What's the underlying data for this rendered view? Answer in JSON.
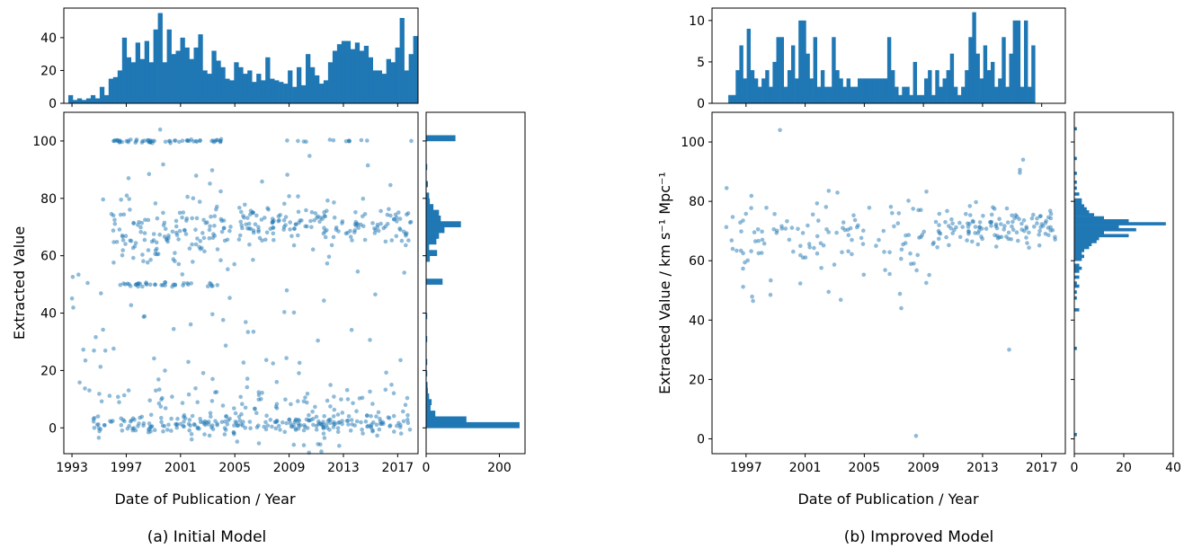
{
  "colors": {
    "accent": "#1f77b4",
    "frame": "#000000",
    "background": "#ffffff"
  },
  "chart_data": [
    {
      "type": "scatter",
      "panel": "a",
      "caption": "(a) Initial Model",
      "xlabel": "Date of Publication / Year",
      "ylabel": "Extracted Value",
      "xlim": [
        1992.4,
        2018.5
      ],
      "ylim": [
        -9,
        110
      ],
      "x_ticks": [
        "1993",
        "1997",
        "2001",
        "2005",
        "2009",
        "2013",
        "2017"
      ],
      "y_ticks": [
        "0",
        "20",
        "40",
        "60",
        "80",
        "100"
      ],
      "top_hist": {
        "ylim": [
          0,
          58
        ],
        "y_ticks": [
          "0",
          "20",
          "40"
        ],
        "bin_start": 1992.4,
        "bin_width": 0.33,
        "counts": [
          0,
          5,
          2,
          3,
          2,
          3,
          5,
          3,
          10,
          5,
          15,
          16,
          20,
          40,
          28,
          25,
          37,
          27,
          38,
          25,
          45,
          55,
          25,
          45,
          30,
          32,
          40,
          34,
          27,
          34,
          42,
          20,
          18,
          32,
          26,
          22,
          15,
          14,
          25,
          22,
          18,
          20,
          13,
          18,
          14,
          28,
          15,
          14,
          13,
          12,
          20,
          10,
          22,
          11,
          30,
          22,
          17,
          12,
          14,
          25,
          32,
          36,
          38,
          38,
          33,
          37,
          32,
          35,
          28,
          20,
          20,
          18,
          27,
          25,
          34,
          52,
          20,
          30,
          41
        ]
      },
      "right_hist": {
        "xlim": [
          0,
          270
        ],
        "x_ticks": [
          "0",
          "200"
        ],
        "bin_width": 2,
        "bins": [
          {
            "y": 0,
            "count": 255
          },
          {
            "y": 2,
            "count": 110
          },
          {
            "y": 4,
            "count": 25
          },
          {
            "y": 6,
            "count": 12
          },
          {
            "y": 8,
            "count": 15
          },
          {
            "y": 10,
            "count": 8
          },
          {
            "y": 12,
            "count": 5
          },
          {
            "y": 14,
            "count": 4
          },
          {
            "y": 18,
            "count": 3
          },
          {
            "y": 22,
            "count": 3
          },
          {
            "y": 30,
            "count": 3
          },
          {
            "y": 38,
            "count": 3
          },
          {
            "y": 50,
            "count": 45
          },
          {
            "y": 58,
            "count": 10
          },
          {
            "y": 60,
            "count": 30
          },
          {
            "y": 62,
            "count": 8
          },
          {
            "y": 64,
            "count": 28
          },
          {
            "y": 66,
            "count": 35
          },
          {
            "y": 68,
            "count": 50
          },
          {
            "y": 70,
            "count": 95
          },
          {
            "y": 72,
            "count": 40
          },
          {
            "y": 74,
            "count": 35
          },
          {
            "y": 76,
            "count": 20
          },
          {
            "y": 78,
            "count": 10
          },
          {
            "y": 80,
            "count": 8
          },
          {
            "y": 84,
            "count": 5
          },
          {
            "y": 90,
            "count": 3
          },
          {
            "y": 100,
            "count": 80
          }
        ]
      }
    },
    {
      "type": "scatter",
      "panel": "b",
      "caption": "(b) Improved Model",
      "xlabel": "Date of Publication / Year",
      "ylabel": "Extracted Value / km s⁻¹ Mpc⁻¹",
      "xlim": [
        1994.7,
        2018.6
      ],
      "ylim": [
        -5,
        110
      ],
      "x_ticks": [
        "1997",
        "2001",
        "2005",
        "2009",
        "2013",
        "2017"
      ],
      "y_ticks": [
        "0",
        "20",
        "40",
        "60",
        "80",
        "100"
      ],
      "top_hist": {
        "ylim": [
          0,
          11.5
        ],
        "y_ticks": [
          "0",
          "5",
          "10"
        ],
        "bin_start": 1995.8,
        "bin_width": 0.25,
        "counts": [
          1,
          1,
          4,
          7,
          3,
          9,
          4,
          3,
          2,
          3,
          4,
          2,
          5,
          8,
          8,
          2,
          4,
          7,
          3,
          10,
          10,
          6,
          3,
          8,
          2,
          4,
          2,
          2,
          8,
          4,
          3,
          2,
          3,
          2,
          2,
          3,
          3,
          3,
          3,
          3,
          3,
          3,
          3,
          8,
          4,
          2,
          1,
          2,
          2,
          1,
          5,
          1,
          1,
          3,
          4,
          1,
          4,
          2,
          3,
          4,
          6,
          2,
          1,
          2,
          4,
          8,
          11,
          6,
          3,
          7,
          4,
          5,
          2,
          3,
          8,
          2,
          6,
          10,
          10,
          2,
          10,
          2,
          7
        ]
      },
      "right_hist": {
        "xlim": [
          0,
          40
        ],
        "x_ticks": [
          "0",
          "20",
          "40"
        ],
        "bin_width": 1,
        "bins": [
          {
            "y": 1,
            "count": 1
          },
          {
            "y": 30,
            "count": 1
          },
          {
            "y": 43,
            "count": 2
          },
          {
            "y": 47,
            "count": 1
          },
          {
            "y": 49,
            "count": 1
          },
          {
            "y": 51,
            "count": 2
          },
          {
            "y": 52,
            "count": 1
          },
          {
            "y": 54,
            "count": 2
          },
          {
            "y": 56,
            "count": 2
          },
          {
            "y": 57,
            "count": 3
          },
          {
            "y": 58,
            "count": 2
          },
          {
            "y": 60,
            "count": 3
          },
          {
            "y": 61,
            "count": 4
          },
          {
            "y": 62,
            "count": 3
          },
          {
            "y": 63,
            "count": 4
          },
          {
            "y": 64,
            "count": 6
          },
          {
            "y": 65,
            "count": 7
          },
          {
            "y": 66,
            "count": 9
          },
          {
            "y": 67,
            "count": 10
          },
          {
            "y": 68,
            "count": 22
          },
          {
            "y": 69,
            "count": 12
          },
          {
            "y": 70,
            "count": 25
          },
          {
            "y": 71,
            "count": 18
          },
          {
            "y": 72,
            "count": 37
          },
          {
            "y": 73,
            "count": 22
          },
          {
            "y": 74,
            "count": 12
          },
          {
            "y": 75,
            "count": 8
          },
          {
            "y": 76,
            "count": 6
          },
          {
            "y": 77,
            "count": 5
          },
          {
            "y": 78,
            "count": 4
          },
          {
            "y": 79,
            "count": 3
          },
          {
            "y": 80,
            "count": 3
          },
          {
            "y": 82,
            "count": 2
          },
          {
            "y": 84,
            "count": 1
          },
          {
            "y": 86,
            "count": 1
          },
          {
            "y": 89,
            "count": 1
          },
          {
            "y": 94,
            "count": 1
          },
          {
            "y": 104,
            "count": 1
          }
        ]
      }
    }
  ]
}
